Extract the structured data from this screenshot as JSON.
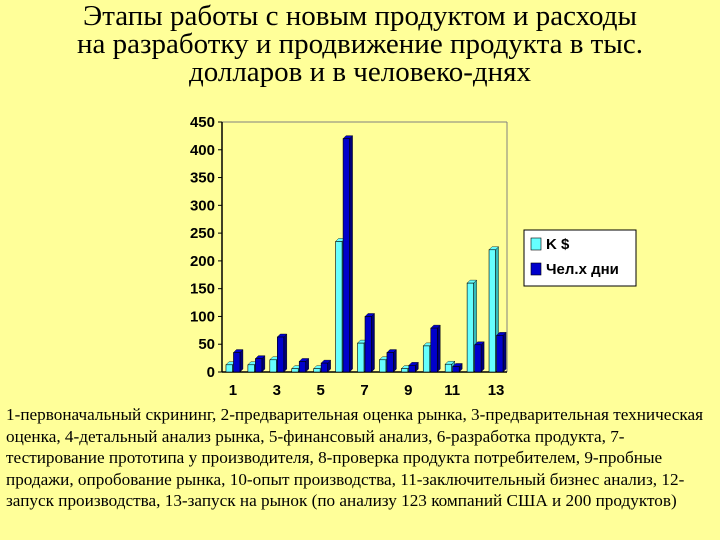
{
  "title": {
    "line1": "Этапы работы с новым продуктом  и расходы",
    "line2": "на разработку и продвижение продукта в тыс.",
    "line3": "долларов и в человеко-днях"
  },
  "chart_data": {
    "type": "bar",
    "x": [
      1,
      2,
      3,
      4,
      5,
      6,
      7,
      8,
      9,
      10,
      11,
      12,
      13
    ],
    "x_tick_labels": [
      "1",
      "3",
      "5",
      "7",
      "9",
      "11",
      "13"
    ],
    "y_tick_labels": [
      "0",
      "50",
      "100",
      "150",
      "200",
      "250",
      "300",
      "350",
      "400",
      "450"
    ],
    "ylim": [
      0,
      450
    ],
    "grid": false,
    "legend_position": "right",
    "series": [
      {
        "name": "K $",
        "color": "#66FFFF",
        "values": [
          13,
          13,
          22,
          6,
          6,
          235,
          52,
          22,
          6,
          47,
          14,
          160,
          220
        ]
      },
      {
        "name": "Чел.х дни",
        "color": "#0000CC",
        "values": [
          35,
          24,
          63,
          19,
          16,
          420,
          100,
          35,
          12,
          79,
          10,
          49,
          66
        ]
      }
    ]
  },
  "caption": "1-первоначальный скрининг, 2-предварительная оценка рынка, 3-предварительная техническая оценка, 4-детальный анализ рынка, 5-финансовый анализ, 6-разработка продукта, 7-тестирование прототипа у производителя, 8-проверка продукта потребителем, 9-пробные продажи, опробование рынка, 10-опыт производства, 11-заключительный бизнес анализ, 12-запуск производства, 13-запуск на рынок (по анализу 123 компаний США и 200 продуктов)"
}
